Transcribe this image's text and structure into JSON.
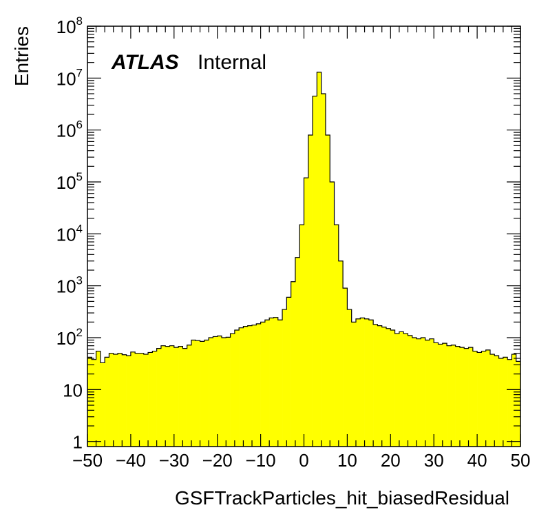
{
  "chart_data": {
    "type": "bar",
    "title": "",
    "xlabel": "GSFTrackParticles_hit_biasedResidual",
    "ylabel": "Entries",
    "xlim": [
      -50,
      50
    ],
    "ylim": [
      0.8,
      100000000
    ],
    "yscale": "log",
    "bin_width": 1,
    "x_tick_labels": [
      "−50",
      "−40",
      "−30",
      "−20",
      "−10",
      "0",
      "10",
      "20",
      "30",
      "40",
      "50"
    ],
    "y_tick_labels": [
      {
        "base": "1",
        "exp": ""
      },
      {
        "base": "10",
        "exp": ""
      },
      {
        "base": "10",
        "exp": "2"
      },
      {
        "base": "10",
        "exp": "3"
      },
      {
        "base": "10",
        "exp": "4"
      },
      {
        "base": "10",
        "exp": "5"
      },
      {
        "base": "10",
        "exp": "6"
      },
      {
        "base": "10",
        "exp": "7"
      },
      {
        "base": "10",
        "exp": "8"
      }
    ],
    "experiment_label": "ATLAS",
    "status_label": "Internal",
    "fill_color": "#ffff00",
    "line_color": "#000000",
    "values": [
      42,
      38,
      55,
      33,
      42,
      50,
      48,
      50,
      47,
      45,
      53,
      50,
      50,
      48,
      52,
      55,
      62,
      70,
      68,
      70,
      65,
      68,
      62,
      72,
      90,
      88,
      85,
      90,
      100,
      105,
      108,
      100,
      102,
      120,
      140,
      155,
      165,
      170,
      175,
      185,
      200,
      220,
      240,
      245,
      220,
      350,
      600,
      1200,
      3500,
      15000,
      120000,
      800000,
      4500000,
      13000000,
      5000000,
      800000,
      100000,
      15000,
      3000,
      900,
      350,
      200,
      230,
      240,
      230,
      220,
      180,
      170,
      160,
      150,
      140,
      120,
      130,
      120,
      110,
      100,
      95,
      100,
      90,
      95,
      80,
      75,
      78,
      70,
      72,
      68,
      65,
      62,
      65,
      55,
      52,
      55,
      58,
      48,
      45,
      40,
      42,
      38,
      48,
      35
    ]
  }
}
